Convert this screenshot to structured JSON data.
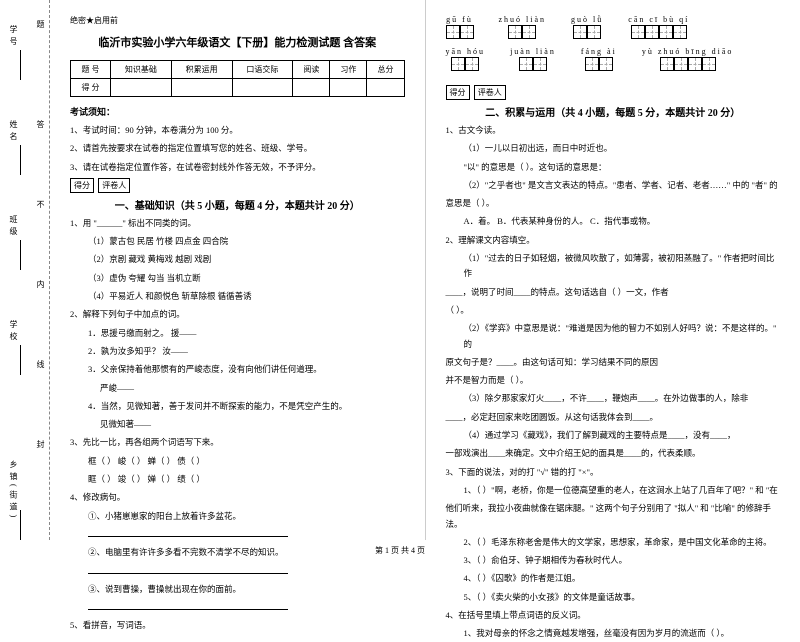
{
  "side": {
    "labels": [
      "学号",
      "姓名",
      "班级",
      "学校",
      "乡镇(街道)"
    ],
    "fold": [
      "题",
      "答",
      "不",
      "内",
      "线",
      "封"
    ]
  },
  "left": {
    "secret": "绝密★启用前",
    "title": "临沂市实验小学六年级语文【下册】能力检测试题 含答案",
    "score_head": [
      "题  号",
      "知识基础",
      "积累运用",
      "口语交际",
      "阅读",
      "习作",
      "总分"
    ],
    "score_row": "得  分",
    "notice": "考试须知：",
    "n1": "1、考试时间：90 分钟，本卷满分为 100 分。",
    "n2": "2、请首先按要求在试卷的指定位置填写您的姓名、班级、学号。",
    "n3": "3、请在试卷指定位置作答，在试卷密封线外作答无效，不予评分。",
    "box1": "得分",
    "box2": "评卷人",
    "sec1": "一、基础知识（共 5 小题，每题 4 分，本题共计 20 分）",
    "q1": "1、用 \"______\" 标出不同类的词。",
    "q1a": "（1）蒙古包      民居          竹楼          四点金          四合院",
    "q1b": "（2）京剧        藏戏          黄梅戏        越剧            戏剧",
    "q1c": "（3）虚伪        夸耀          勾当          当机立断",
    "q1d": "（4）平易近人    和颜悦色      斩草除根      循循善诱",
    "q2": "2、解释下列句子中加点的词。",
    "q2a": "1．思援弓缴而射之。    援——",
    "q2b": "2．孰为汝多知乎？      汝——",
    "q2c": "3．父亲保持着他那惯有的严峻态度，没有向他们讲任何道理。",
    "q2c2": "严峻——",
    "q2d": "4．当然，见微知著，善于发问并不断探索的能力，不是凭空产生的。",
    "q2d2": "见微知著——",
    "q3": "3、先比一比，再各组两个词语写下来。",
    "q3a": "框（      ）   峻（      ）   蝉（      ）   债（      ）",
    "q3b": "眶（      ）   竣（      ）   婵（      ）   绩（      ）",
    "q4": "4、修改病句。",
    "q4a": "①、小猪崽崽家的阳台上放着许多盆花。",
    "q4b": "②、电脑里有许许多多看不完数不清学不尽的知识。",
    "q4c": "③、说到曹操，曹操就出现在你的面前。",
    "q5": "5、看拼音，写词语。"
  },
  "right": {
    "pinyin": [
      {
        "py": "gū  fù",
        "n": 2
      },
      {
        "py": "zhuó  liàn",
        "n": 2
      },
      {
        "py": "guò  lǜ",
        "n": 2
      },
      {
        "py": "cān  cī  bù  qí",
        "n": 4
      }
    ],
    "pinyin2": [
      {
        "py": "yān  hóu",
        "n": 2
      },
      {
        "py": "juàn  liàn",
        "n": 2
      },
      {
        "py": "fáng ài",
        "n": 2
      },
      {
        "py": "yù  zhuó  bīng  diāo",
        "n": 4
      }
    ],
    "box1": "得分",
    "box2": "评卷人",
    "sec2": "二、积累与运用（共 4 小题，每题 5 分，本题共计 20 分）",
    "q1": "1、古文今读。",
    "q1a": "（1）一儿以日初出远，而日中时近也。",
    "q1b": "\"以\" 的意思是（        ）。这句话的意思是：",
    "q1c": "（2）\"之乎者也\" 是文言文表达的特点。\"患者、学者、记者、老者……\" 中的 \"者\" 的",
    "q1c2": "意思是（        ）。",
    "q1d": "     A．着。    B．代表某种身份的人。    C．指代事或物。",
    "q2": "2、理解课文内容填空。",
    "q2a": "（1）\"过去的日子如轻烟，被微风吹散了，如薄雾，被初阳蒸融了。\" 作者把时间比作",
    "q2a2": "____，说明了时间____的特点。这句话选自（        ）一文，作者",
    "q2a3": "（       ）。",
    "q2b": "（2）《学弈》中意思是说：\"难道是因为他的智力不如别人好吗？说：不是这样的。\" 的",
    "q2b2": "原文句子是？____。由这句话可知：学习结果不同的原因",
    "q2b3": "并不是智力而是（        ）。",
    "q2c": "（3）除夕那家家灯火____，不许____，鞭炮声____。在外边做事的人，除非",
    "q2c2": "____，必定赶回家来吃团圆饭。从这句话我体会到____。",
    "q2d": "（4）通过学习《藏戏》，我们了解到藏戏的主要特点是____，没有____，",
    "q2d2": "一部戏演出____来确定。文中介绍王妃的面具是____的，代表柔顺。",
    "q3": "3、下面的说法，对的打 \"√\" 错的打 \"×\"。",
    "q3a": "1、（    ）\"啊，老桥，你是一位德高望重的老人，在这涧水上站了几百年了吧？\" 和 \"在",
    "q3a2": "他们听来，我拉小夜曲就像在锯床腿。\" 这两个句子分别用了 \"拟人\" 和 \"比喻\" 的修辞手法。",
    "q3b": "2、（    ）毛泽东称老舍是伟大的文学家，思想家，革命家，是中国文化革命的主将。",
    "q3c": "3、（    ）俞伯牙、钟子期相传为春秋时代人。",
    "q3d": "4、（    ）《囚歌》的作者是江姐。",
    "q3e": "5、（    ）《卖火柴的小女孩》的文体是童话故事。",
    "q4": "4、在括号里填上带点词语的反义词。",
    "q4a": "1、我对母亲的怀念之情竟越发增强，丝毫没有因为岁月的流逝而（      ）。"
  },
  "footer": "第 1 页 共 4 页"
}
